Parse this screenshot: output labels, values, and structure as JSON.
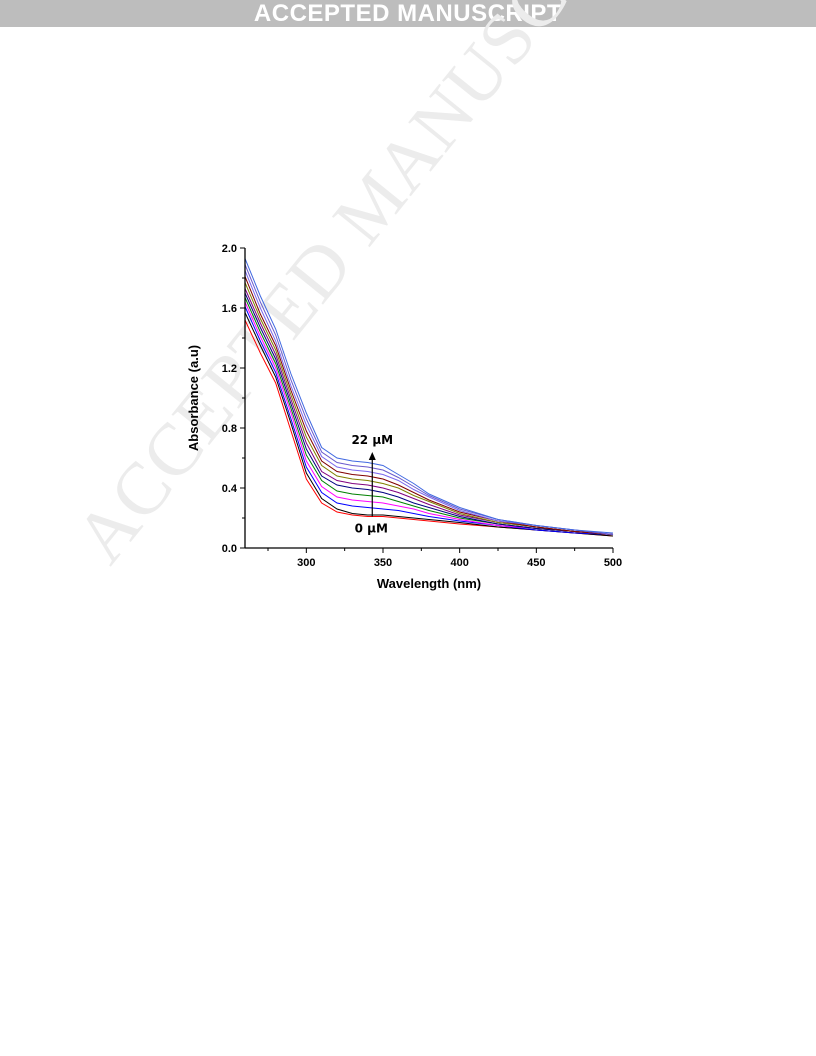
{
  "header": {
    "banner_text": "ACCEPTED MANUSCRIPT"
  },
  "watermark": {
    "text": "ACCEPTED MANUSCRIPT"
  },
  "chart_data": {
    "type": "line",
    "title": "",
    "xlabel": "Wavelength (nm)",
    "ylabel": "Absorbance (a.u)",
    "xlim": [
      260,
      500
    ],
    "ylim": [
      0.0,
      2.0
    ],
    "x_ticks": [
      300,
      350,
      400,
      450,
      500
    ],
    "y_ticks": [
      0.0,
      0.4,
      0.8,
      1.2,
      1.6,
      2.0
    ],
    "x_tick_labels": [
      "300",
      "350",
      "400",
      "450",
      "500"
    ],
    "y_tick_labels": [
      "0.0",
      "0.4",
      "0.8",
      "1.2",
      "1.6",
      "2.0"
    ],
    "grid": false,
    "annotations": {
      "top": "22 μM",
      "bottom": "0 μM",
      "arrow_x": 343,
      "arrow_from_y": 0.21,
      "arrow_to_y": 0.64
    },
    "x": [
      260,
      270,
      280,
      290,
      300,
      310,
      320,
      330,
      340,
      350,
      360,
      370,
      380,
      400,
      425,
      450,
      475,
      500
    ],
    "series": [
      {
        "color": "#ff0000",
        "values": [
          1.52,
          1.3,
          1.1,
          0.78,
          0.46,
          0.3,
          0.24,
          0.22,
          0.21,
          0.21,
          0.2,
          0.19,
          0.18,
          0.16,
          0.14,
          0.12,
          0.1,
          0.08
        ]
      },
      {
        "color": "#000000",
        "values": [
          1.57,
          1.35,
          1.14,
          0.83,
          0.5,
          0.33,
          0.26,
          0.23,
          0.22,
          0.22,
          0.21,
          0.2,
          0.19,
          0.17,
          0.14,
          0.12,
          0.1,
          0.08
        ]
      },
      {
        "color": "#0000ff",
        "values": [
          1.61,
          1.38,
          1.17,
          0.86,
          0.54,
          0.37,
          0.3,
          0.28,
          0.27,
          0.26,
          0.25,
          0.23,
          0.21,
          0.18,
          0.15,
          0.12,
          0.1,
          0.09
        ]
      },
      {
        "color": "#ff00ff",
        "values": [
          1.64,
          1.41,
          1.2,
          0.9,
          0.58,
          0.41,
          0.34,
          0.32,
          0.31,
          0.3,
          0.28,
          0.26,
          0.23,
          0.19,
          0.15,
          0.13,
          0.11,
          0.09
        ]
      },
      {
        "color": "#008000",
        "values": [
          1.67,
          1.44,
          1.23,
          0.93,
          0.62,
          0.45,
          0.38,
          0.36,
          0.35,
          0.34,
          0.31,
          0.28,
          0.25,
          0.2,
          0.16,
          0.13,
          0.11,
          0.09
        ]
      },
      {
        "color": "#000080",
        "values": [
          1.7,
          1.47,
          1.26,
          0.96,
          0.66,
          0.48,
          0.42,
          0.4,
          0.39,
          0.37,
          0.34,
          0.3,
          0.27,
          0.21,
          0.16,
          0.13,
          0.11,
          0.09
        ]
      },
      {
        "color": "#800080",
        "values": [
          1.73,
          1.5,
          1.29,
          0.99,
          0.7,
          0.51,
          0.45,
          0.43,
          0.42,
          0.4,
          0.37,
          0.33,
          0.29,
          0.22,
          0.17,
          0.14,
          0.11,
          0.09
        ]
      },
      {
        "color": "#808000",
        "values": [
          1.77,
          1.53,
          1.32,
          1.02,
          0.74,
          0.55,
          0.48,
          0.46,
          0.45,
          0.43,
          0.4,
          0.35,
          0.31,
          0.23,
          0.17,
          0.14,
          0.11,
          0.09
        ]
      },
      {
        "color": "#800000",
        "values": [
          1.81,
          1.56,
          1.35,
          1.05,
          0.78,
          0.58,
          0.51,
          0.49,
          0.48,
          0.46,
          0.42,
          0.37,
          0.32,
          0.24,
          0.18,
          0.14,
          0.11,
          0.09
        ]
      },
      {
        "color": "#7b68ee",
        "values": [
          1.85,
          1.6,
          1.38,
          1.08,
          0.82,
          0.61,
          0.54,
          0.52,
          0.51,
          0.49,
          0.45,
          0.39,
          0.34,
          0.25,
          0.18,
          0.15,
          0.12,
          0.09
        ]
      },
      {
        "color": "#6a5acd",
        "values": [
          1.89,
          1.64,
          1.42,
          1.12,
          0.86,
          0.64,
          0.57,
          0.55,
          0.54,
          0.52,
          0.47,
          0.41,
          0.35,
          0.26,
          0.19,
          0.15,
          0.12,
          0.09
        ]
      },
      {
        "color": "#4169e1",
        "values": [
          1.93,
          1.68,
          1.46,
          1.16,
          0.9,
          0.67,
          0.6,
          0.58,
          0.57,
          0.55,
          0.49,
          0.43,
          0.36,
          0.27,
          0.19,
          0.15,
          0.12,
          0.1
        ]
      }
    ]
  }
}
